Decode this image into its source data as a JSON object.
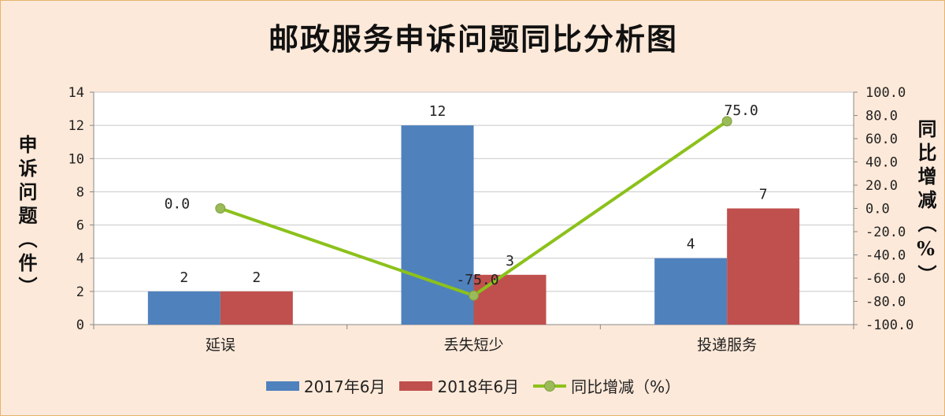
{
  "chart_data": {
    "type": "bar",
    "title": "邮政服务申诉问题同比分析图",
    "ylabel": "申诉问题（件）",
    "y2label": "同比增减（%）",
    "categories": [
      "延误",
      "丢失短少",
      "投递服务"
    ],
    "ylim": [
      0,
      14
    ],
    "yticks": [
      0,
      2,
      4,
      6,
      8,
      10,
      12,
      14
    ],
    "y2lim": [
      -100,
      100
    ],
    "y2ticks": [
      100.0,
      80.0,
      60.0,
      40.0,
      20.0,
      0.0,
      -20.0,
      -40.0,
      -60.0,
      -80.0,
      -100.0
    ],
    "y2tick_labels": [
      "100.0",
      "80.0",
      "60.0",
      "40.0",
      "20.0",
      "0.0",
      "-20.0",
      "-40.0",
      "-60.0",
      "-80.0",
      "-100.0"
    ],
    "series": [
      {
        "name": "2017年6月",
        "type": "bar",
        "axis": "left",
        "color": "#4f81bd",
        "values": [
          2,
          12,
          4
        ],
        "labels": [
          "2",
          "12",
          "4"
        ]
      },
      {
        "name": "2018年6月",
        "type": "bar",
        "axis": "left",
        "color": "#c0504d",
        "values": [
          2,
          3,
          7
        ],
        "labels": [
          "2",
          "3",
          "7"
        ]
      },
      {
        "name": "同比增减（%）",
        "type": "line",
        "axis": "right",
        "color": "#8cc11b",
        "values": [
          0.0,
          -75.0,
          75.0
        ],
        "labels": [
          "0.0",
          "-75.0",
          "75.0"
        ]
      }
    ],
    "grid": true,
    "legend": "bottom"
  }
}
